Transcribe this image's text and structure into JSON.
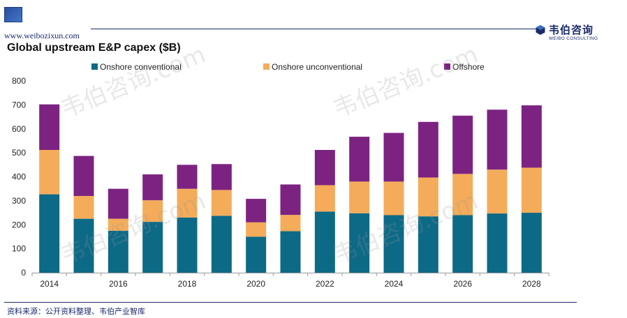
{
  "header": {
    "site_url": "www.weibozixun.com",
    "brand_name_cn": "韦伯咨询",
    "brand_name_en": "WEIBO CONSULTING"
  },
  "watermark_text": "韦伯咨询.com",
  "footer": {
    "source": "资料来源：公开资料整理、韦伯产业智库"
  },
  "colors": {
    "onshore_conventional": "#0d6a87",
    "onshore_unconventional": "#f4ac5a",
    "offshore": "#7c2382",
    "brand": "#1a2a6c"
  },
  "chart_data": {
    "type": "bar",
    "stacked": true,
    "title": "Global upstream E&P capex ($B)",
    "xlabel": "",
    "ylabel": "",
    "ylim": [
      0,
      800
    ],
    "yticks": [
      0,
      100,
      200,
      300,
      400,
      500,
      600,
      700,
      800
    ],
    "legend_position": "top",
    "grid": false,
    "categories": [
      "2014",
      "2015",
      "2016",
      "2017",
      "2018",
      "2019",
      "2020",
      "2021",
      "2022",
      "2023",
      "2024",
      "2025",
      "2026",
      "2027",
      "2028"
    ],
    "xtick_labels": [
      "2014",
      "",
      "2016",
      "",
      "2018",
      "",
      "2020",
      "",
      "2022",
      "",
      "2024",
      "",
      "2026",
      "",
      "2028"
    ],
    "series": [
      {
        "name": "Onshore conventional",
        "color": "#0d6a87",
        "values": [
          327,
          225,
          175,
          212,
          230,
          237,
          150,
          173,
          255,
          248,
          240,
          235,
          240,
          247,
          250
        ]
      },
      {
        "name": "Onshore unconventional",
        "color": "#f4ac5a",
        "values": [
          185,
          95,
          50,
          90,
          120,
          108,
          60,
          68,
          110,
          132,
          140,
          162,
          172,
          183,
          188
        ]
      },
      {
        "name": "Offshore",
        "color": "#7c2382",
        "values": [
          190,
          167,
          125,
          108,
          100,
          108,
          98,
          127,
          147,
          187,
          203,
          232,
          243,
          250,
          260
        ]
      }
    ]
  }
}
